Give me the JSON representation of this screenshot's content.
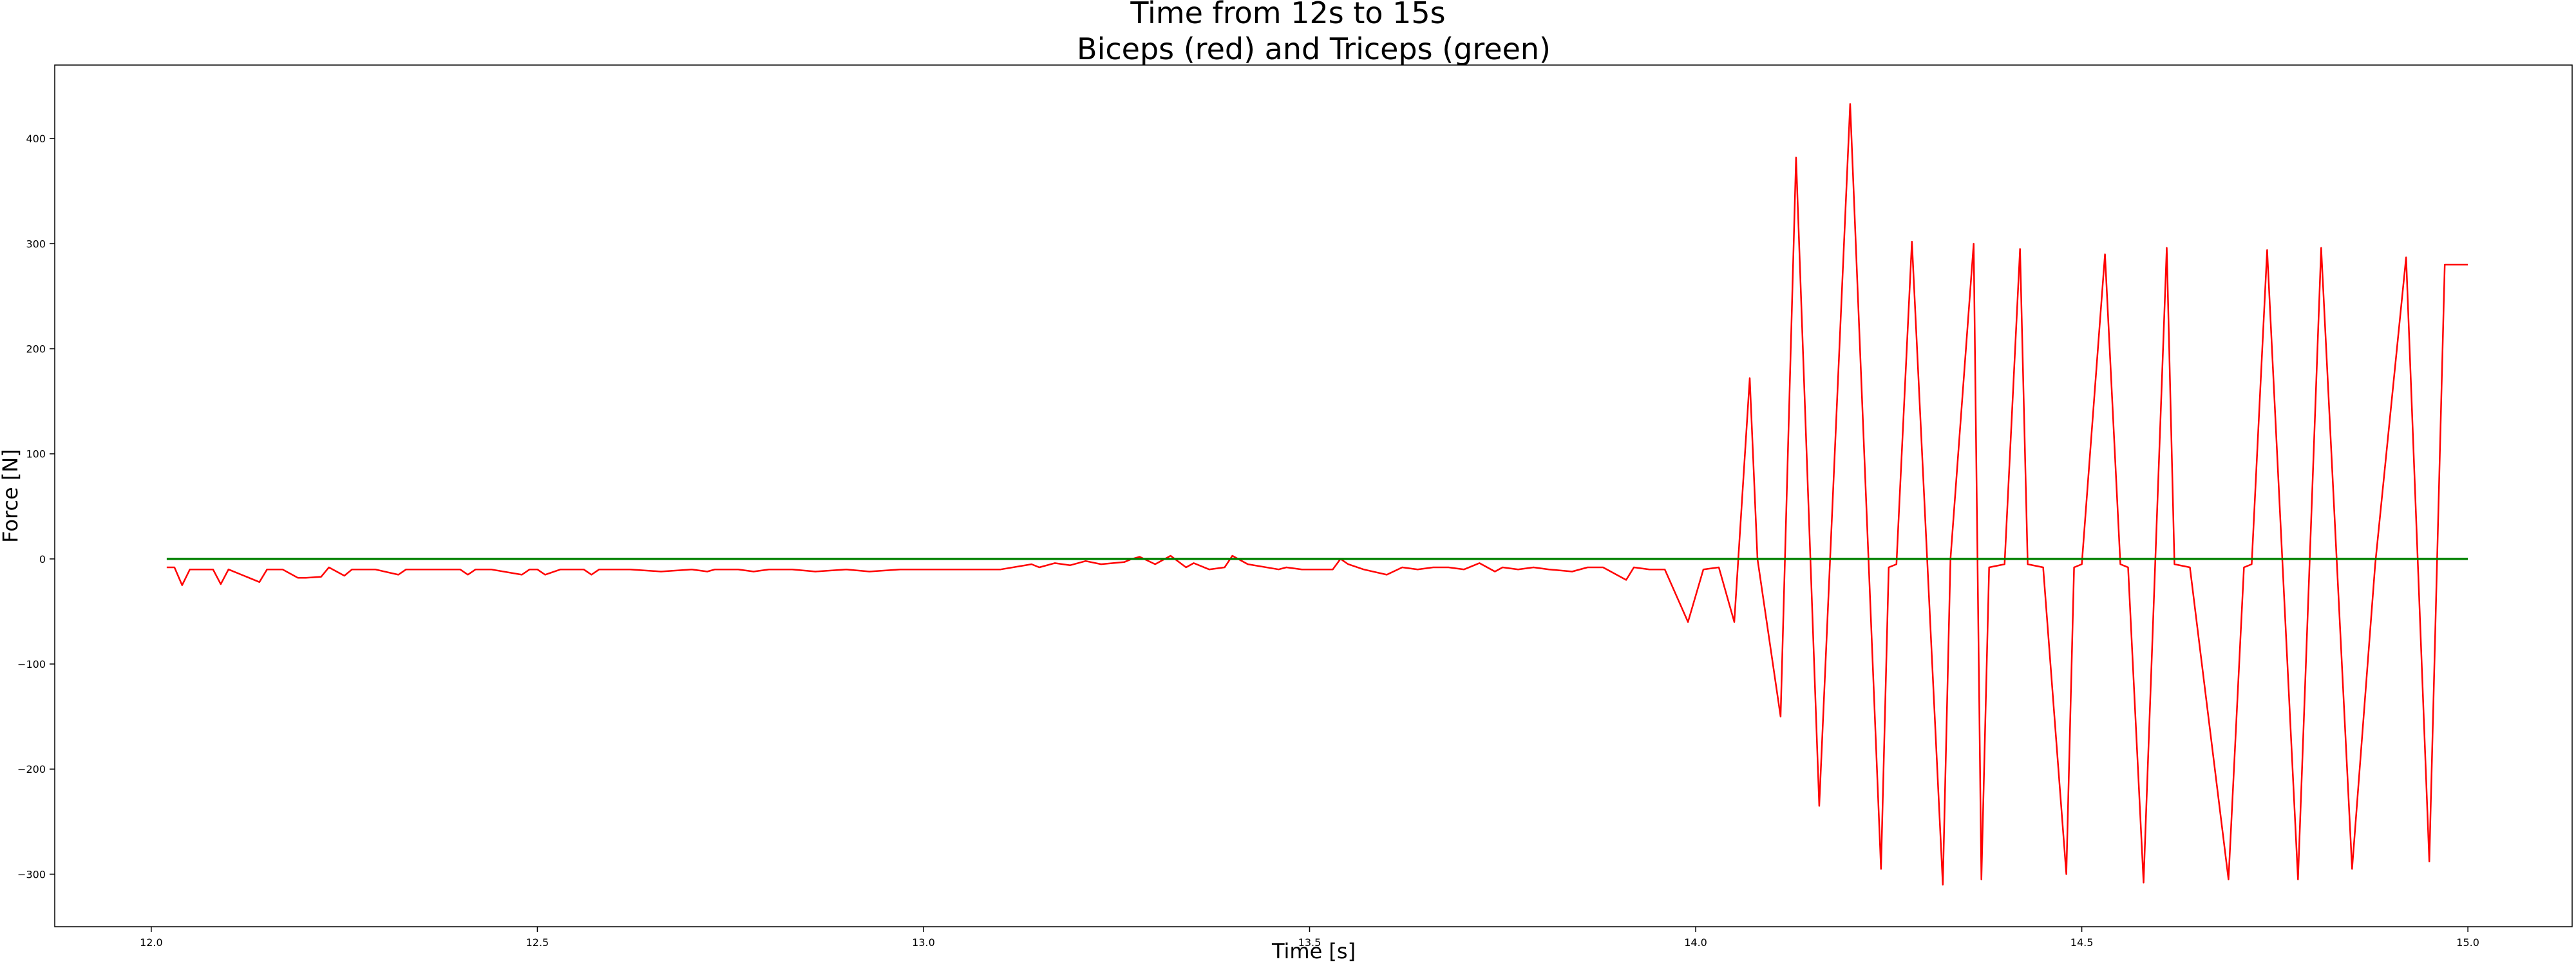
{
  "chart_data": {
    "type": "line",
    "title": "Time from 12s to 15s",
    "subtitle": "Biceps (red) and Triceps (green)",
    "xlabel": "Time [s]",
    "ylabel": "Force [N]",
    "xlim": [
      11.875,
      15.135
    ],
    "ylim": [
      -350,
      470
    ],
    "xticks": [
      12.0,
      12.5,
      13.0,
      13.5,
      14.0,
      14.5,
      15.0
    ],
    "xtick_labels": [
      "12.0",
      "12.5",
      "13.0",
      "13.5",
      "14.0",
      "14.5",
      "15.0"
    ],
    "yticks": [
      -300,
      -200,
      -100,
      0,
      100,
      200,
      300,
      400
    ],
    "ytick_labels": [
      "−300",
      "−200",
      "−100",
      "0",
      "100",
      "200",
      "300",
      "400"
    ],
    "grid": false,
    "series": [
      {
        "color": "#ff0000",
        "x": [
          12.02,
          12.03,
          12.04,
          12.05,
          12.08,
          12.09,
          12.1,
          12.14,
          12.15,
          12.17,
          12.19,
          12.2,
          12.22,
          12.23,
          12.25,
          12.26,
          12.27,
          12.29,
          12.32,
          12.33,
          12.35,
          12.4,
          12.41,
          12.42,
          12.44,
          12.48,
          12.49,
          12.5,
          12.51,
          12.53,
          12.56,
          12.57,
          12.58,
          12.62,
          12.66,
          12.7,
          12.72,
          12.73,
          12.76,
          12.78,
          12.8,
          12.81,
          12.83,
          12.86,
          12.9,
          12.93,
          12.97,
          13.0,
          13.05,
          13.1,
          13.14,
          13.15,
          13.17,
          13.19,
          13.21,
          13.23,
          13.26,
          13.27,
          13.28,
          13.3,
          13.32,
          13.34,
          13.35,
          13.37,
          13.39,
          13.4,
          13.42,
          13.46,
          13.47,
          13.49,
          13.53,
          13.54,
          13.55,
          13.57,
          13.6,
          13.62,
          13.64,
          13.66,
          13.68,
          13.7,
          13.72,
          13.74,
          13.75,
          13.77,
          13.79,
          13.81,
          13.84,
          13.86,
          13.88,
          13.91,
          13.92,
          13.94,
          13.96,
          13.99,
          14.01,
          14.03,
          14.05,
          14.07,
          14.08,
          14.11,
          14.13,
          14.16,
          14.2,
          14.24,
          14.25,
          14.26,
          14.28,
          14.32,
          14.33,
          14.36,
          14.37,
          14.38,
          14.4,
          14.42,
          14.43,
          14.45,
          14.48,
          14.49,
          14.5,
          14.53,
          14.55,
          14.56,
          14.58,
          14.61,
          14.62,
          14.64,
          14.69,
          14.71,
          14.72,
          14.74,
          14.78,
          14.81,
          14.85,
          14.88,
          14.92,
          14.95,
          14.97,
          15.0
        ],
        "y": [
          -8,
          -8,
          -25,
          -10,
          -10,
          -24,
          -10,
          -22,
          -10,
          -10,
          -18,
          -18,
          -17,
          -8,
          -16,
          -10,
          -10,
          -10,
          -15,
          -10,
          -10,
          -10,
          -15,
          -10,
          -10,
          -15,
          -10,
          -10,
          -15,
          -10,
          -10,
          -15,
          -10,
          -10,
          -12,
          -10,
          -12,
          -10,
          -10,
          -12,
          -10,
          -10,
          -10,
          -12,
          -10,
          -12,
          -10,
          -10,
          -10,
          -10,
          -5,
          -8,
          -4,
          -6,
          -2,
          -5,
          -3,
          0,
          2,
          -5,
          3,
          -8,
          -4,
          -10,
          -8,
          3,
          -5,
          -10,
          -8,
          -10,
          -10,
          0,
          -5,
          -10,
          -15,
          -8,
          -10,
          -8,
          -8,
          -10,
          -4,
          -12,
          -8,
          -10,
          -8,
          -10,
          -12,
          -8,
          -8,
          -20,
          -8,
          -10,
          -10,
          -60,
          -10,
          -8,
          -60,
          172,
          0,
          -150,
          382,
          -235,
          433,
          -295,
          -8,
          -5,
          302,
          -310,
          0,
          300,
          -305,
          -8,
          -5,
          295,
          -5,
          -8,
          -300,
          -8,
          -5,
          290,
          -5,
          -8,
          -308,
          296,
          -5,
          -8,
          -305,
          -8,
          -5,
          294,
          -305,
          296,
          -295,
          -5,
          287,
          -288,
          280,
          280
        ],
        "draw_order": "as-is"
      },
      {
        "color": "#008000",
        "x": [
          12.02,
          15.0
        ],
        "y": [
          0,
          0
        ]
      }
    ]
  }
}
